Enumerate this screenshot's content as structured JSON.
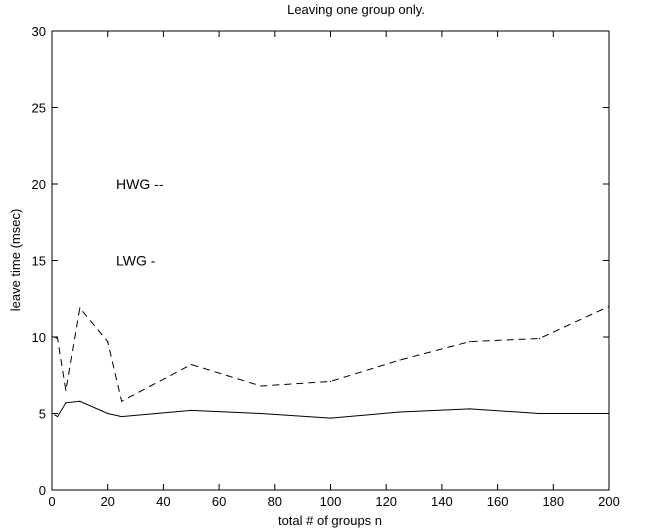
{
  "chart_data": {
    "type": "line",
    "title": "Leaving one group only.",
    "xlabel": "total # of groups n",
    "ylabel": "leave time (msec)",
    "xlim": [
      0,
      200
    ],
    "ylim": [
      0,
      30
    ],
    "xticks": [
      0,
      20,
      40,
      60,
      80,
      100,
      120,
      140,
      160,
      180,
      200
    ],
    "yticks": [
      0,
      5,
      10,
      15,
      20,
      25,
      30
    ],
    "grid": false,
    "legend": "none",
    "series": [
      {
        "style": "dashed",
        "color": "#000000",
        "x": [
          1,
          2,
          5,
          10,
          20,
          25,
          50,
          75,
          100,
          125,
          150,
          175,
          200
        ],
        "y": [
          10.0,
          9.9,
          6.5,
          11.9,
          9.7,
          5.8,
          8.2,
          6.8,
          7.1,
          8.5,
          9.7,
          9.9,
          12.0
        ]
      },
      {
        "style": "solid",
        "color": "#000000",
        "x": [
          1,
          2,
          5,
          10,
          20,
          25,
          50,
          75,
          100,
          125,
          150,
          175,
          200
        ],
        "y": [
          4.9,
          4.8,
          5.7,
          5.8,
          5.0,
          4.8,
          5.2,
          5.0,
          4.7,
          5.1,
          5.3,
          5.0,
          5.0
        ]
      }
    ],
    "annotations": [
      {
        "text": "HWG --",
        "x": 23,
        "y": 20
      },
      {
        "text": "LWG -",
        "x": 23,
        "y": 15
      }
    ]
  }
}
